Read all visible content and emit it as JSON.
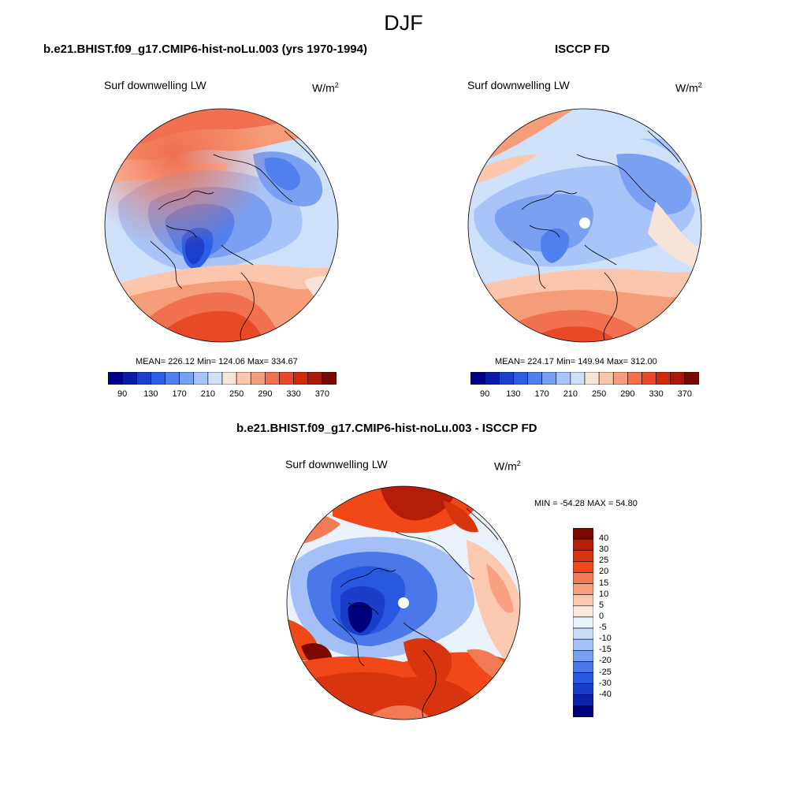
{
  "page": {
    "title": "DJF"
  },
  "palette": {
    "h_colors": [
      "#00008b",
      "#0a1aa8",
      "#1a3fcc",
      "#2d5fe6",
      "#5080ee",
      "#7aa0f2",
      "#a8c4f8",
      "#cfe0fb",
      "#f7e4d8",
      "#fbc6ac",
      "#f59c78",
      "#f07050",
      "#e84a28",
      "#d02a0a",
      "#a81a04",
      "#7a0a00"
    ],
    "h_ticks": [
      "90",
      "130",
      "170",
      "210",
      "250",
      "290",
      "330",
      "370"
    ],
    "v_colors": [
      "#7a0a00",
      "#b41e08",
      "#d8340e",
      "#f04818",
      "#f27a55",
      "#f8a080",
      "#fbc8b0",
      "#fbe8dc",
      "#eaf2fc",
      "#c8dbf8",
      "#a4c0f6",
      "#7aa0f0",
      "#4a78ea",
      "#2858e0",
      "#1a3ec8",
      "#0c22a8",
      "#00007e"
    ],
    "v_ticks": [
      "40",
      "30",
      "25",
      "20",
      "15",
      "10",
      "5",
      "0",
      "-5",
      "-10",
      "-15",
      "-20",
      "-25",
      "-30",
      "-40"
    ]
  },
  "panels": {
    "model": {
      "title": "b.e21.BHIST.f09_g17.CMIP6-hist-noLu.003 (yrs 1970-1994)",
      "variable": "Surf downwelling LW",
      "units": "W/m",
      "units_sup": "2",
      "stats": "MEAN= 226.12  Min= 124.06  Max= 334.67"
    },
    "obs": {
      "title": "ISCCP FD",
      "variable": "Surf downwelling LW",
      "units": "W/m",
      "units_sup": "2",
      "stats": "MEAN= 224.17  Min= 149.94  Max= 312.00"
    },
    "diff": {
      "title": "b.e21.BHIST.f09_g17.CMIP6-hist-noLu.003 - ISCCP FD",
      "variable": "Surf downwelling LW",
      "units": "W/m",
      "units_sup": "2",
      "stats": "MIN = -54.28 MAX =  54.80"
    }
  }
}
